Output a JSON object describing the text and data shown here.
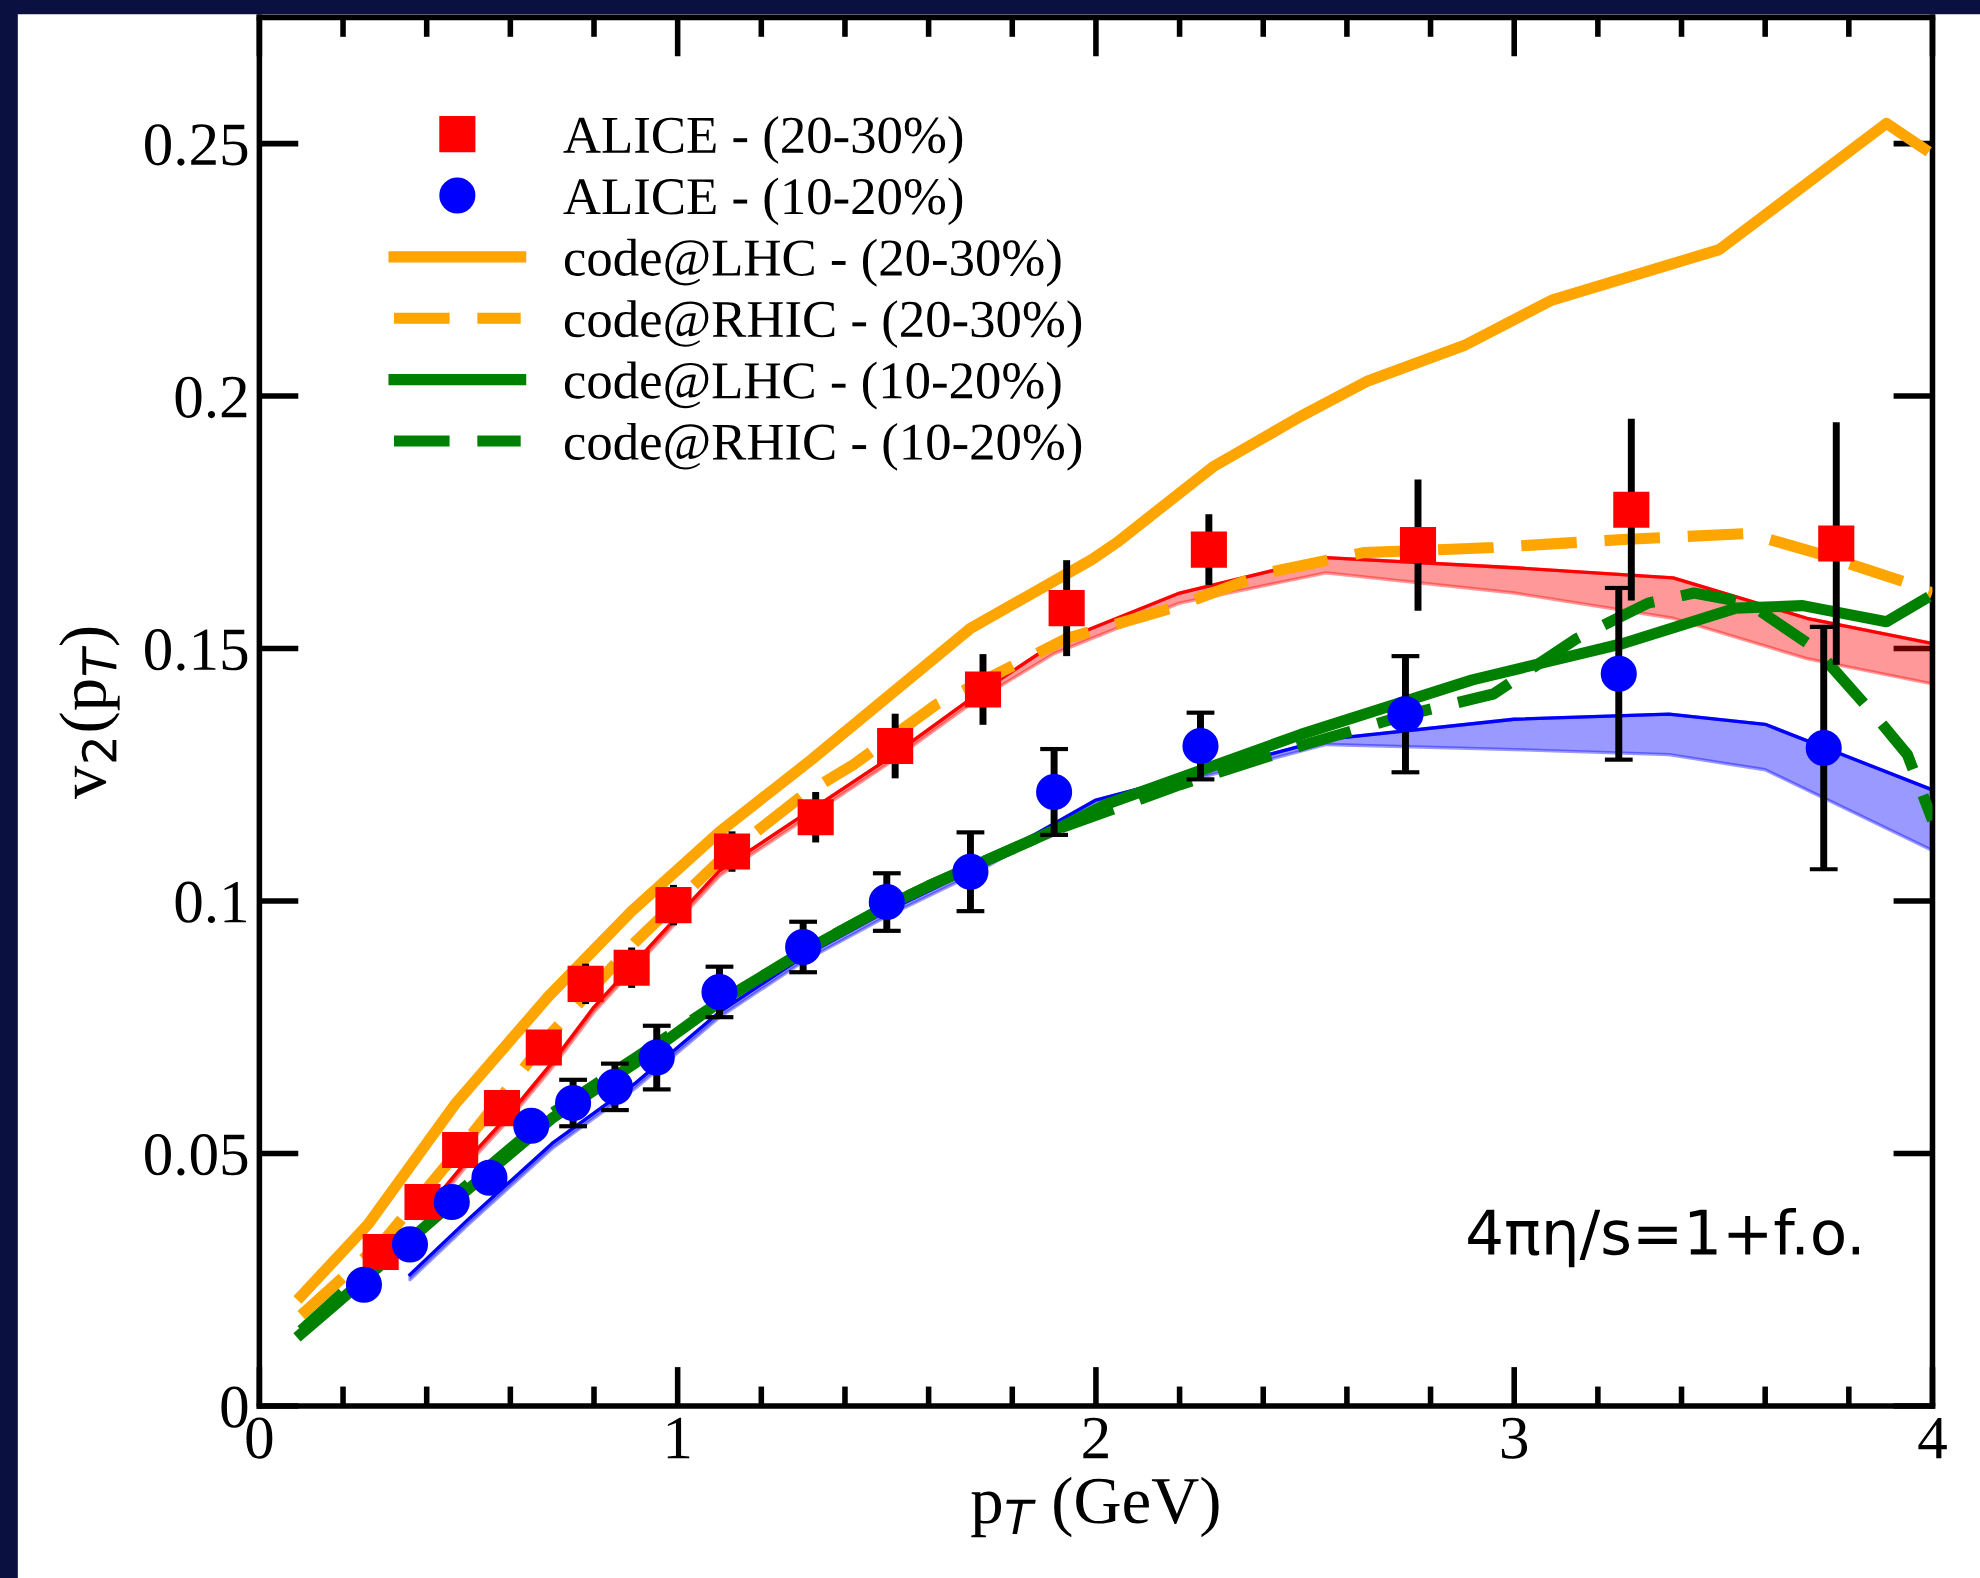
{
  "chart_data": {
    "type": "line",
    "xlabel": "p$_{T}$ (GeV)",
    "ylabel": "v$_{2}$(p$_{T}$)",
    "xlim": [
      0,
      4
    ],
    "ylim": [
      0,
      0.275
    ],
    "xticks": [
      0,
      1,
      2,
      3,
      4
    ],
    "yticks": [
      0,
      0.05,
      0.1,
      0.15,
      0.2,
      0.25
    ],
    "grid": false,
    "legend": "top left",
    "annotations": [
      "4πη/s=1+f.o."
    ],
    "series": [
      {
        "type": "scatter",
        "name": "ALICE - (20-30%)",
        "color": "#ff0000",
        "marker": "square",
        "x": [
          0.29,
          0.39,
          0.48,
          0.58,
          0.68,
          0.78,
          0.89,
          0.99,
          1.13,
          1.33,
          1.52,
          1.73,
          1.93,
          2.27,
          2.77,
          3.28,
          3.77
        ],
        "values": [
          0.0305,
          0.0404,
          0.0507,
          0.059,
          0.071,
          0.0836,
          0.0868,
          0.0992,
          0.1098,
          0.1166,
          0.1307,
          0.1419,
          0.158,
          0.1696,
          0.1705,
          0.1775,
          0.1708
        ],
        "errors": [
          null,
          null,
          null,
          null,
          null,
          0.004,
          0.004,
          0.004,
          0.004,
          0.005,
          0.0064,
          0.007,
          0.0095,
          0.007,
          0.013,
          0.018,
          0.024
        ]
      },
      {
        "type": "scatter",
        "name": "ALICE - (10-20%)",
        "color": "#0000ff",
        "marker": "circle",
        "x": [
          0.25,
          0.36,
          0.46,
          0.55,
          0.65,
          0.75,
          0.85,
          0.95,
          1.1,
          1.3,
          1.5,
          1.7,
          1.9,
          2.25,
          2.74,
          3.25,
          3.74
        ],
        "values": [
          0.024,
          0.032,
          0.0404,
          0.0452,
          0.0555,
          0.06,
          0.0632,
          0.069,
          0.082,
          0.0909,
          0.0998,
          0.1058,
          0.1216,
          0.1307,
          0.137,
          0.145,
          0.1303
        ],
        "errors": [
          null,
          null,
          null,
          null,
          null,
          0.0046,
          0.0046,
          0.0063,
          0.005,
          0.005,
          0.0057,
          0.0078,
          0.0085,
          0.0066,
          0.0115,
          0.017,
          0.024
        ]
      },
      {
        "name": "code@LHC - (20-30%)",
        "color": "#ffa500",
        "line_style": "solid",
        "x": [
          0.1,
          0.26,
          0.47,
          0.69,
          0.89,
          1.1,
          1.32,
          1.7,
          1.99,
          2.05,
          2.28,
          2.49,
          2.65,
          2.88,
          3.09,
          3.49,
          3.89,
          3.98
        ],
        "values": [
          0.0218,
          0.036,
          0.06,
          0.081,
          0.098,
          0.1137,
          0.128,
          0.154,
          0.1676,
          0.171,
          0.186,
          0.196,
          0.203,
          0.21,
          0.219,
          0.229,
          0.254,
          0.249
        ]
      },
      {
        "name": "code@RHIC - (20-30%)",
        "color": "#ffa500",
        "line_style": "dashed",
        "x": [
          0.1,
          0.3,
          0.5,
          0.7,
          0.9,
          1.1,
          1.3,
          1.42,
          1.62,
          1.93,
          2.18,
          2.41,
          2.64,
          2.95,
          3.26,
          3.56,
          3.72,
          3.94,
          4.0
        ],
        "values": [
          0.018,
          0.033,
          0.053,
          0.074,
          0.092,
          0.108,
          0.121,
          0.127,
          0.139,
          0.152,
          0.158,
          0.165,
          0.169,
          0.17,
          0.1716,
          0.1728,
          0.169,
          0.163,
          0.161
        ]
      },
      {
        "name": "code@LHC - (10-20%)",
        "color": "#008000",
        "line_style": "solid",
        "x": [
          0.1,
          0.18,
          0.5,
          0.7,
          0.9,
          1.1,
          1.3,
          1.5,
          1.6,
          1.9,
          2.02,
          2.49,
          2.9,
          3.26,
          3.53,
          3.69,
          3.89,
          3.98
        ],
        "values": [
          0.0143,
          0.02,
          0.043,
          0.057,
          0.068,
          0.08,
          0.09,
          0.099,
          0.103,
          0.114,
          0.119,
          0.133,
          0.1438,
          0.151,
          0.158,
          0.1585,
          0.1553,
          0.1597
        ]
      },
      {
        "name": "code@RHIC - (10-20%)",
        "color": "#008000",
        "line_style": "dashed",
        "x": [
          0.1,
          0.3,
          0.5,
          0.7,
          0.9,
          1.1,
          1.3,
          1.5,
          1.6,
          1.9,
          2.2,
          2.5,
          2.75,
          2.95,
          3.15,
          3.32,
          3.43,
          3.56,
          3.72,
          3.87,
          3.94,
          4.0
        ],
        "values": [
          0.015,
          0.03,
          0.044,
          0.058,
          0.069,
          0.08,
          0.09,
          0.099,
          0.103,
          0.114,
          0.123,
          0.131,
          0.137,
          0.141,
          0.152,
          0.159,
          0.161,
          0.159,
          0.15,
          0.136,
          0.129,
          0.116
        ]
      },
      {
        "color": "#ff0000",
        "x": [
          0.39,
          0.5,
          0.6,
          0.7,
          0.8,
          0.9,
          1.0,
          1.1,
          1.3,
          1.5,
          1.7,
          1.9,
          2.2,
          2.55,
          3.0,
          3.38,
          3.7,
          4.0
        ],
        "values": [
          0.038,
          0.049,
          0.058,
          0.068,
          0.079,
          0.088,
          0.097,
          0.106,
          0.117,
          0.128,
          0.14,
          0.151,
          0.161,
          0.168,
          0.166,
          0.164,
          0.156,
          0.151
        ],
        "lower": [
          0.037,
          0.048,
          0.057,
          0.067,
          0.078,
          0.087,
          0.096,
          0.105,
          0.116,
          0.127,
          0.139,
          0.149,
          0.159,
          0.165,
          0.161,
          0.156,
          0.148,
          0.143
        ],
        "upper": [
          0.038,
          0.049,
          0.058,
          0.068,
          0.079,
          0.088,
          0.097,
          0.106,
          0.117,
          0.128,
          0.14,
          0.151,
          0.161,
          0.168,
          0.166,
          0.164,
          0.156,
          0.151
        ]
      },
      {
        "color": "#0000ff",
        "x": [
          0.36,
          0.5,
          0.7,
          0.9,
          1.1,
          1.3,
          1.5,
          1.7,
          2.0,
          2.55,
          3.0,
          3.37,
          3.6,
          4.0
        ],
        "values": [
          0.026,
          0.037,
          0.052,
          0.064,
          0.078,
          0.089,
          0.098,
          0.106,
          0.12,
          0.132,
          0.136,
          0.137,
          0.135,
          0.122
        ],
        "lower": [
          0.025,
          0.036,
          0.051,
          0.063,
          0.077,
          0.088,
          0.097,
          0.105,
          0.119,
          0.131,
          0.13,
          0.129,
          0.126,
          0.11
        ],
        "upper": [
          0.026,
          0.037,
          0.052,
          0.064,
          0.078,
          0.089,
          0.098,
          0.106,
          0.12,
          0.132,
          0.136,
          0.137,
          0.135,
          0.122
        ]
      }
    ]
  }
}
